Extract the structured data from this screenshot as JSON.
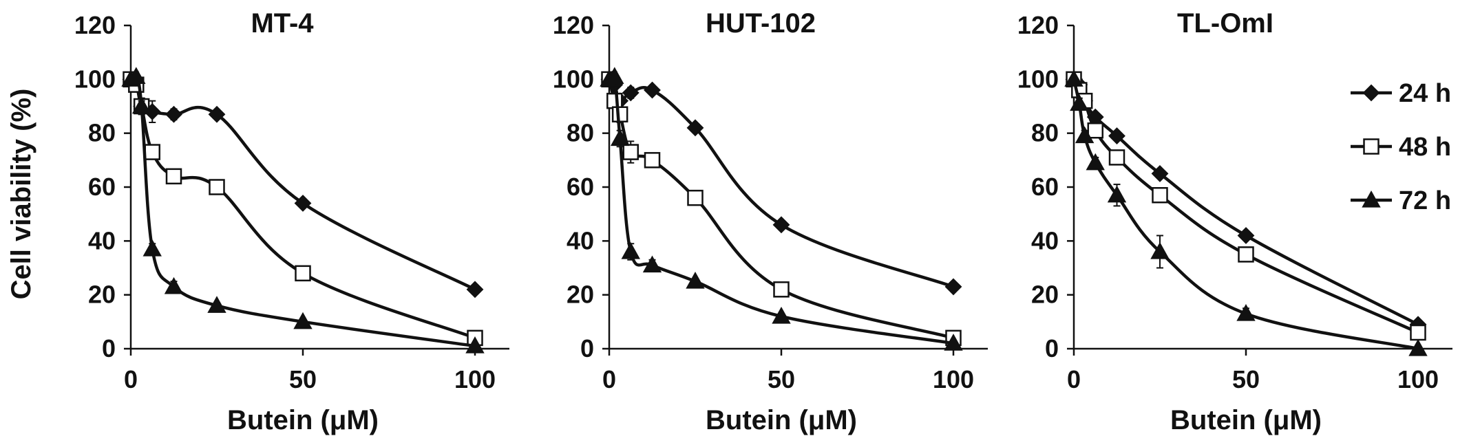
{
  "chart_data": [
    {
      "type": "line",
      "title": "MT-4",
      "xlabel": "Butein (μM)",
      "ylabel": "Cell viability (%)",
      "xlim": [
        0,
        100
      ],
      "ylim": [
        0,
        120
      ],
      "xticks": [
        "0",
        "50",
        "100"
      ],
      "yticks": [
        "0",
        "20",
        "40",
        "60",
        "80",
        "100",
        "120"
      ],
      "grid": false,
      "series": [
        {
          "name": "24 h",
          "marker": "diamond-filled",
          "x": [
            0,
            1.56,
            3.13,
            6.25,
            12.5,
            25,
            50,
            100
          ],
          "y": [
            100,
            99,
            90,
            88,
            87,
            87,
            54,
            22
          ],
          "err": [
            0,
            1,
            3,
            4,
            2,
            1,
            1,
            1
          ]
        },
        {
          "name": "48 h",
          "marker": "square-open",
          "x": [
            0,
            1.56,
            3.13,
            6.25,
            12.5,
            25,
            50,
            100
          ],
          "y": [
            100,
            98,
            90,
            73,
            64,
            60,
            28,
            4
          ],
          "err": [
            0,
            2,
            3,
            2,
            2,
            2,
            1,
            1
          ]
        },
        {
          "name": "72 h",
          "marker": "triangle-filled",
          "x": [
            0,
            1.56,
            3.13,
            6.25,
            12.5,
            25,
            50,
            100
          ],
          "y": [
            100,
            101,
            90,
            37,
            23,
            16,
            10,
            1
          ],
          "err": [
            0,
            1,
            2,
            2,
            2,
            1,
            1,
            0
          ]
        }
      ]
    },
    {
      "type": "line",
      "title": "HUT-102",
      "xlabel": "Butein (μM)",
      "ylabel": "",
      "xlim": [
        0,
        100
      ],
      "ylim": [
        0,
        120
      ],
      "xticks": [
        "0",
        "50",
        "100"
      ],
      "yticks": [
        "0",
        "20",
        "40",
        "60",
        "80",
        "100",
        "120"
      ],
      "grid": false,
      "series": [
        {
          "name": "24 h",
          "marker": "diamond-filled",
          "x": [
            0,
            1.56,
            3.13,
            6.25,
            12.5,
            25,
            50,
            100
          ],
          "y": [
            100,
            98,
            92,
            95,
            96,
            82,
            46,
            23
          ],
          "err": [
            0,
            1,
            2,
            2,
            1,
            1,
            1,
            1
          ]
        },
        {
          "name": "48 h",
          "marker": "square-open",
          "x": [
            0,
            1.56,
            3.13,
            6.25,
            12.5,
            25,
            50,
            100
          ],
          "y": [
            100,
            92,
            87,
            73,
            70,
            56,
            22,
            4
          ],
          "err": [
            0,
            2,
            3,
            4,
            2,
            2,
            1,
            0
          ]
        },
        {
          "name": "72 h",
          "marker": "triangle-filled",
          "x": [
            0,
            1.56,
            3.13,
            6.25,
            12.5,
            25,
            50,
            100
          ],
          "y": [
            100,
            101,
            78,
            36,
            31,
            25,
            12,
            2
          ],
          "err": [
            0,
            1,
            3,
            3,
            2,
            1,
            1,
            0
          ]
        }
      ]
    },
    {
      "type": "line",
      "title": "TL-OmI",
      "xlabel": "Butein (μM)",
      "ylabel": "",
      "xlim": [
        0,
        100
      ],
      "ylim": [
        0,
        120
      ],
      "xticks": [
        "0",
        "50",
        "100"
      ],
      "yticks": [
        "0",
        "20",
        "40",
        "60",
        "80",
        "100",
        "120"
      ],
      "grid": false,
      "legend_position": "top-right",
      "series": [
        {
          "name": "24 h",
          "marker": "diamond-filled",
          "x": [
            0,
            1.56,
            3.13,
            6.25,
            12.5,
            25,
            50,
            100
          ],
          "y": [
            100,
            98,
            92,
            86,
            79,
            65,
            42,
            9
          ],
          "err": [
            0,
            2,
            2,
            1,
            1,
            1,
            1,
            0
          ]
        },
        {
          "name": "48 h",
          "marker": "square-open",
          "x": [
            0,
            1.56,
            3.13,
            6.25,
            12.5,
            25,
            50,
            100
          ],
          "y": [
            100,
            96,
            92,
            81,
            71,
            57,
            35,
            6
          ],
          "err": [
            0,
            3,
            2,
            2,
            2,
            2,
            1,
            1
          ]
        },
        {
          "name": "72 h",
          "marker": "triangle-filled",
          "x": [
            0,
            1.56,
            3.13,
            6.25,
            12.5,
            25,
            50,
            100
          ],
          "y": [
            100,
            91,
            79,
            69,
            57,
            36,
            13,
            0
          ],
          "err": [
            0,
            2,
            2,
            2,
            4,
            6,
            2,
            0
          ]
        }
      ]
    }
  ],
  "legend": [
    {
      "label": "24 h",
      "marker": "diamond-filled"
    },
    {
      "label": "48 h",
      "marker": "square-open"
    },
    {
      "label": "72 h",
      "marker": "triangle-filled"
    }
  ],
  "colors": {
    "line": "#111111",
    "marker_fill": "#111111",
    "open_marker_fill": "#ffffff",
    "background": "#ffffff"
  }
}
